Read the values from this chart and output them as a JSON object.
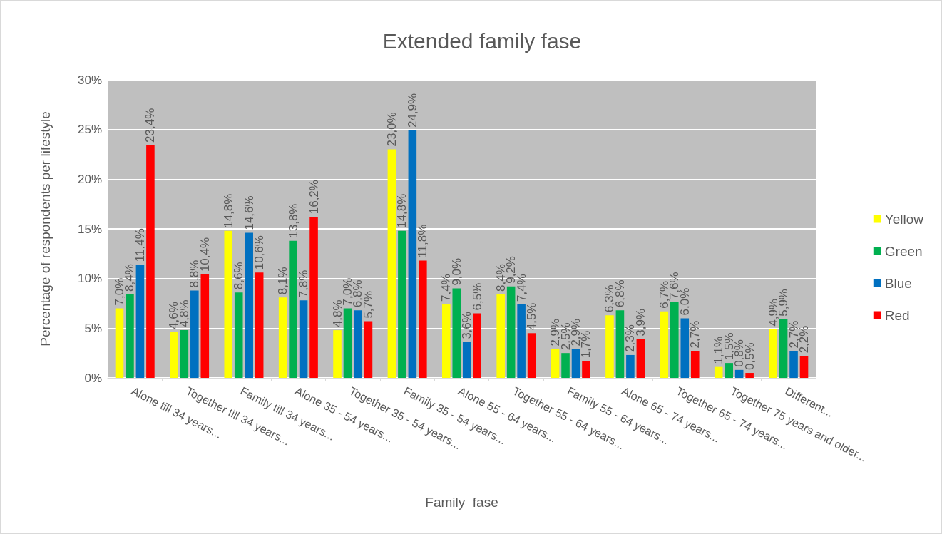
{
  "chart_data": {
    "type": "bar",
    "title": "Extended family fase",
    "xlabel": "Family  fase",
    "ylabel": "Percentage of respondents per lifestyle",
    "categories": [
      "Alone till 34 years...",
      "Together till 34 years...",
      "Family till 34 years...",
      "Alone 35 - 54 years...",
      "Together 35 - 54 years...",
      "Family 35 - 54 years...",
      "Alone 55 - 64 years...",
      "Together 55 - 64 years...",
      "Family 55 - 64 years...",
      "Alone 65 - 74 years...",
      "Together 65 - 74 years...",
      "Together 75 years and older...",
      "Different..."
    ],
    "series": [
      {
        "name": "Yellow",
        "color": "#ffff00",
        "values": [
          7.0,
          4.6,
          14.8,
          8.1,
          4.8,
          23.0,
          7.4,
          8.4,
          2.9,
          6.3,
          6.7,
          1.1,
          4.9
        ],
        "value_labels": [
          "7,0%",
          "4,6%",
          "14,8%",
          "8,1%",
          "4,8%",
          "23,0%",
          "7,4%",
          "8,4%",
          "2,9%",
          "6,3%",
          "6,7%",
          "1,1%",
          "4,9%"
        ]
      },
      {
        "name": "Green",
        "color": "#00b050",
        "values": [
          8.4,
          4.8,
          8.6,
          13.8,
          7.0,
          14.8,
          9.0,
          9.2,
          2.5,
          6.8,
          7.6,
          1.5,
          5.9
        ],
        "value_labels": [
          "8,4%",
          "4,8%",
          "8,6%",
          "13,8%",
          "7,0%",
          "14,8%",
          "9,0%",
          "9,2%",
          "2,5%",
          "6,8%",
          "7,6%",
          "1,5%",
          "5,9%"
        ]
      },
      {
        "name": "Blue",
        "color": "#0070c0",
        "values": [
          11.4,
          8.8,
          14.6,
          7.8,
          6.8,
          24.9,
          3.6,
          7.4,
          2.9,
          2.3,
          6.0,
          0.8,
          2.7
        ],
        "value_labels": [
          "11,4%",
          "8,8%",
          "14,6%",
          "7,8%",
          "6,8%",
          "24,9%",
          "3,6%",
          "7,4%",
          "2,9%",
          "2,3%",
          "6,0%",
          "0,8%",
          "2,7%"
        ]
      },
      {
        "name": "Red",
        "color": "#ff0000",
        "values": [
          23.4,
          10.4,
          10.6,
          16.2,
          5.7,
          11.8,
          6.5,
          4.5,
          1.7,
          3.9,
          2.7,
          0.5,
          2.2
        ],
        "value_labels": [
          "23,4%",
          "10,4%",
          "10,6%",
          "16,2%",
          "5,7%",
          "11,8%",
          "6,5%",
          "4,5%",
          "1,7%",
          "3,9%",
          "2,7%",
          "0,5%",
          "2,2%"
        ]
      }
    ],
    "ylim": [
      0,
      30
    ],
    "yticks": [
      {
        "value": 0,
        "label": "0%"
      },
      {
        "value": 5,
        "label": "5%"
      },
      {
        "value": 10,
        "label": "10%"
      },
      {
        "value": 15,
        "label": "15%"
      },
      {
        "value": 20,
        "label": "20%"
      },
      {
        "value": 25,
        "label": "25%"
      },
      {
        "value": 30,
        "label": "30%"
      }
    ],
    "grid": "y",
    "legend": "right"
  }
}
